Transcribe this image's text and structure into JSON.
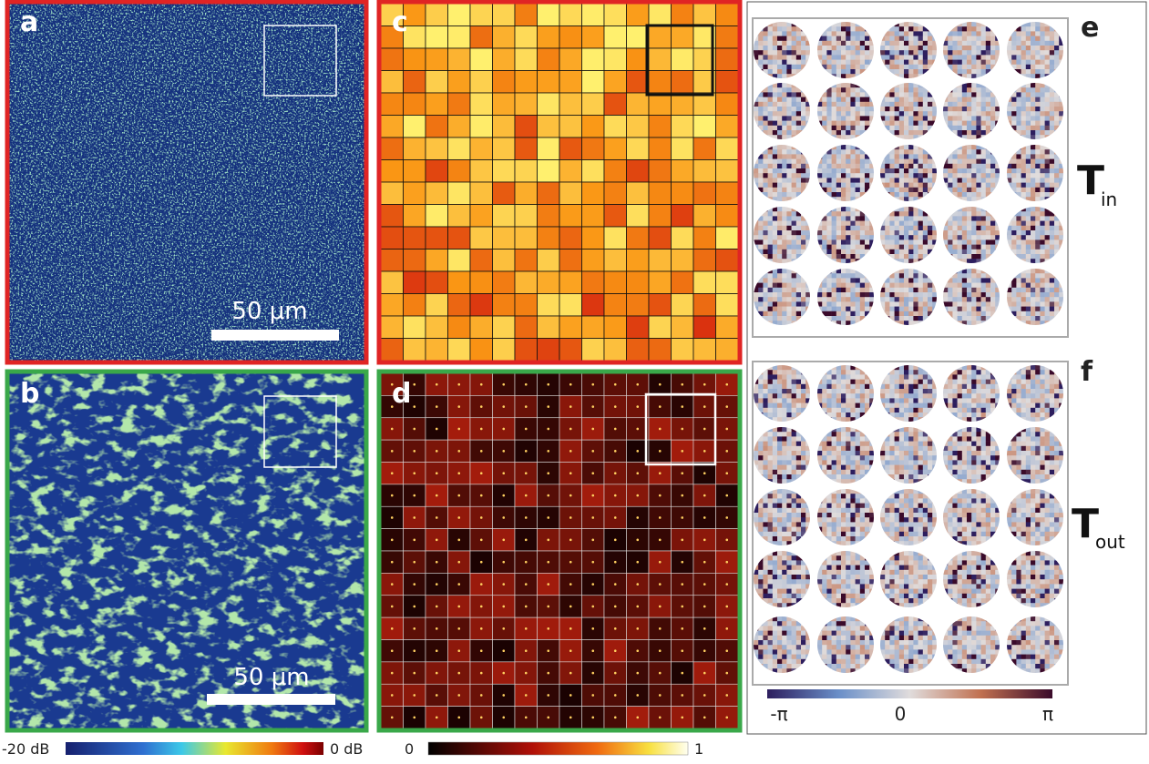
{
  "panels": {
    "a": {
      "label": "a",
      "scale_bar": "50 μm"
    },
    "b": {
      "label": "b",
      "scale_bar": "50 μm"
    },
    "c": {
      "label": "c"
    },
    "d": {
      "label": "d"
    },
    "e": {
      "label": "e",
      "matrix": {
        "symbol": "T",
        "subscript": "in"
      }
    },
    "f": {
      "label": "f",
      "matrix": {
        "symbol": "T",
        "subscript": "out"
      }
    }
  },
  "colorbars": {
    "intensity": {
      "min_label": "-20 dB",
      "max_label": "0 dB"
    },
    "normalized": {
      "min_label": "0",
      "max_label": "1"
    },
    "phase": {
      "min_label": "-π",
      "mid_label": "0",
      "max_label": "π"
    }
  }
}
